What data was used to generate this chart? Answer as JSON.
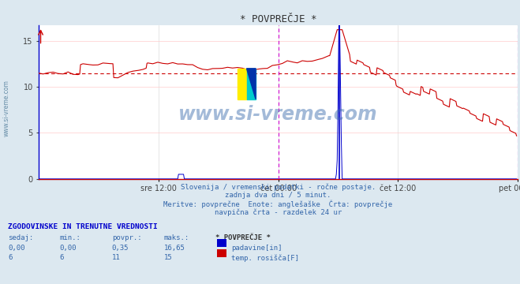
{
  "title": "* POVPREČJE *",
  "bg_color": "#dce8f0",
  "plot_bg_color": "#ffffff",
  "grid_color": "#dddddd",
  "grid_color_red": "#ffcccc",
  "x_labels": [
    "sre 12:00",
    "čet 00:00",
    "čet 12:00",
    "pet 00:00"
  ],
  "ylim": [
    0,
    16.65
  ],
  "yticks": [
    0,
    5,
    10,
    15
  ],
  "avg_line_value": 11.5,
  "avg_line_color": "#cc0000",
  "series1_color": "#0000cc",
  "series2_color": "#cc0000",
  "vline_midnight_color": "#cc00cc",
  "vline_current_color": "#0000cc",
  "subtitle1": "Slovenija / vremenski podatki - ročne postaje.",
  "subtitle2": "zadnja dva dni / 5 minut.",
  "subtitle3": "Meritve: povprečne  Enote: anglešaške  Črta: povprečje",
  "subtitle4": "navpična črta - razdelek 24 ur",
  "table_header": "ZGODOVINSKE IN TRENUTNE VREDNOSTI",
  "col_headers": [
    "sedaj:",
    "min.:",
    "povpr.:",
    "maks.:",
    "* POVPREČJE *"
  ],
  "row1_vals": [
    "0,00",
    "0,00",
    "0,35",
    "16,65"
  ],
  "row1_label": "padavine[in]",
  "row1_color": "#0000cc",
  "row2_vals": [
    "6",
    "6",
    "11",
    "15"
  ],
  "row2_label": "temp. rosišča[F]",
  "row2_color": "#cc0000",
  "watermark": "www.si-vreme.com",
  "left_label": "www.si-vreme.com"
}
